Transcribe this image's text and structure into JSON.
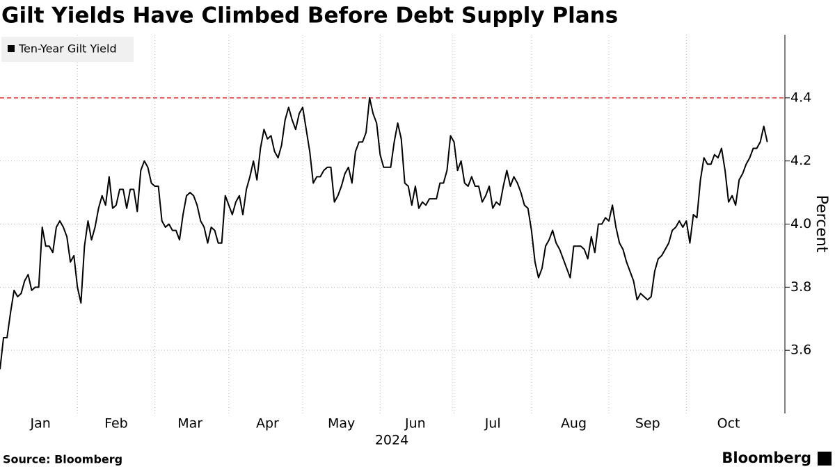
{
  "chart_data": {
    "type": "line",
    "title": "Gilt Yields Have Climbed Before Debt Supply Plans",
    "y_label": "Percent",
    "x_label": "2024",
    "source": "Source: Bloomberg",
    "brand": "Bloomberg",
    "series": [
      {
        "name": "Ten-Year Gilt Yield",
        "color": "#000000",
        "values": [
          3.54,
          3.64,
          3.64,
          3.72,
          3.79,
          3.77,
          3.78,
          3.82,
          3.84,
          3.79,
          3.8,
          3.8,
          3.99,
          3.93,
          3.93,
          3.91,
          3.99,
          4.01,
          3.99,
          3.96,
          3.88,
          3.9,
          3.8,
          3.75,
          3.93,
          4.01,
          3.95,
          3.99,
          4.05,
          4.09,
          4.06,
          4.15,
          4.05,
          4.06,
          4.11,
          4.11,
          4.05,
          4.11,
          4.11,
          4.04,
          4.17,
          4.2,
          4.18,
          4.13,
          4.12,
          4.12,
          4.01,
          3.99,
          4.0,
          3.98,
          3.98,
          3.95,
          4.03,
          4.09,
          4.1,
          4.09,
          4.06,
          4.01,
          3.99,
          3.94,
          3.99,
          3.98,
          3.94,
          3.94,
          4.09,
          4.06,
          4.03,
          4.07,
          4.09,
          4.03,
          4.11,
          4.15,
          4.2,
          4.14,
          4.24,
          4.3,
          4.27,
          4.28,
          4.23,
          4.21,
          4.25,
          4.33,
          4.37,
          4.33,
          4.3,
          4.35,
          4.37,
          4.3,
          4.23,
          4.13,
          4.15,
          4.15,
          4.17,
          4.18,
          4.18,
          4.07,
          4.09,
          4.12,
          4.16,
          4.18,
          4.13,
          4.23,
          4.26,
          4.26,
          4.29,
          4.4,
          4.35,
          4.32,
          4.22,
          4.18,
          4.18,
          4.18,
          4.26,
          4.32,
          4.27,
          4.13,
          4.12,
          4.06,
          4.12,
          4.05,
          4.07,
          4.06,
          4.08,
          4.08,
          4.08,
          4.13,
          4.13,
          4.17,
          4.28,
          4.26,
          4.17,
          4.2,
          4.13,
          4.12,
          4.15,
          4.12,
          4.12,
          4.07,
          4.09,
          4.12,
          4.05,
          4.07,
          4.06,
          4.12,
          4.17,
          4.12,
          4.15,
          4.13,
          4.1,
          4.06,
          4.05,
          3.98,
          3.88,
          3.83,
          3.86,
          3.93,
          3.95,
          3.98,
          3.94,
          3.92,
          3.89,
          3.86,
          3.83,
          3.93,
          3.93,
          3.93,
          3.92,
          3.89,
          3.96,
          3.91,
          4.0,
          4.0,
          4.02,
          4.01,
          4.06,
          3.99,
          3.94,
          3.92,
          3.88,
          3.85,
          3.82,
          3.76,
          3.78,
          3.77,
          3.76,
          3.77,
          3.85,
          3.89,
          3.9,
          3.92,
          3.94,
          3.98,
          3.99,
          4.01,
          3.99,
          4.01,
          3.94,
          4.03,
          4.02,
          4.14,
          4.21,
          4.19,
          4.19,
          4.22,
          4.21,
          4.24,
          4.17,
          4.07,
          4.09,
          4.06,
          4.14,
          4.16,
          4.19,
          4.21,
          4.24,
          4.24,
          4.26,
          4.31,
          4.26
        ]
      }
    ],
    "xlim": [
      0,
      223
    ],
    "xticks": [
      {
        "value": 11.5,
        "label": "Jan"
      },
      {
        "value": 33,
        "label": "Feb"
      },
      {
        "value": 54,
        "label": "Mar"
      },
      {
        "value": 76,
        "label": "Apr"
      },
      {
        "value": 97,
        "label": "May"
      },
      {
        "value": 118,
        "label": "Jun"
      },
      {
        "value": 140,
        "label": "Jul"
      },
      {
        "value": 163,
        "label": "Aug"
      },
      {
        "value": 184,
        "label": "Sep"
      },
      {
        "value": 207,
        "label": "Oct"
      }
    ],
    "xgrid": [
      22,
      44,
      65,
      86,
      108,
      129,
      151,
      173,
      195
    ],
    "ylim": [
      3.4,
      4.6
    ],
    "yticks": [
      3.6,
      3.8,
      {
        "value": 4,
        "label": "4.0"
      },
      4.2,
      4.4
    ],
    "reference_line": {
      "value": 4.4,
      "color": "#e5312f"
    },
    "grid": true,
    "legend": "top-left"
  }
}
